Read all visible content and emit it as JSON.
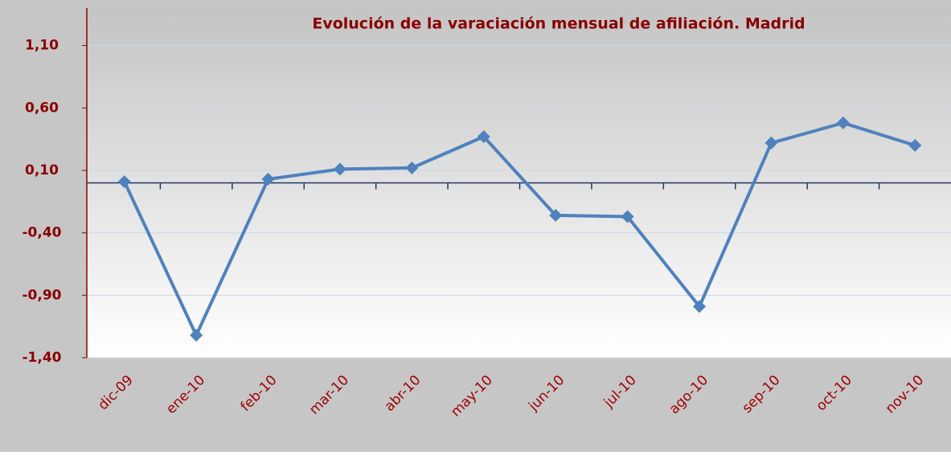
{
  "chart_data": {
    "type": "line",
    "title": "Evolución de la varaciación mensual de afiliación. Madrid",
    "categories": [
      "dic-09",
      "ene-10",
      "feb-10",
      "mar-10",
      "abr-10",
      "may-10",
      "jun-10",
      "jul-10",
      "ago-10",
      "sep-10",
      "oct-10",
      "nov-10"
    ],
    "series": [
      {
        "name": "Madrid",
        "color": "#4f81bd",
        "values": [
          0.01,
          -1.22,
          0.03,
          0.11,
          0.12,
          0.37,
          -0.26,
          -0.27,
          -0.99,
          0.32,
          0.48,
          0.3
        ]
      }
    ],
    "ylim": [
      -1.4,
      1.4
    ],
    "yticks": [
      {
        "value": -1.4,
        "label": "-1,40"
      },
      {
        "value": -0.9,
        "label": "-0,90"
      },
      {
        "value": -0.4,
        "label": "-0,40"
      },
      {
        "value": 0.1,
        "label": "0,10"
      },
      {
        "value": 0.6,
        "label": "0,60"
      },
      {
        "value": 1.1,
        "label": "1,10"
      }
    ],
    "grid": true
  }
}
